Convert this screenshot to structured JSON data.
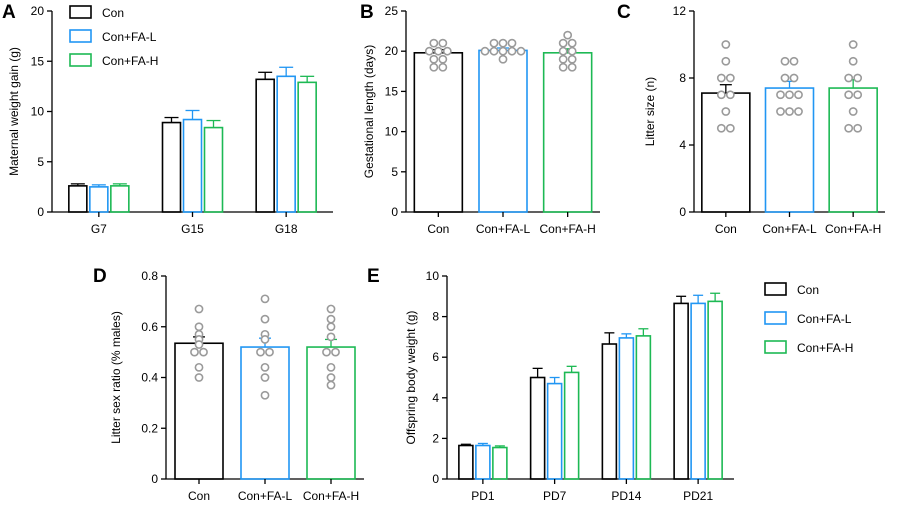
{
  "colors": {
    "con": "#000000",
    "fa_l": "#2196F3",
    "fa_h": "#1DB954",
    "dots": "#9a9a9a"
  },
  "chart_data": [
    {
      "panel": "A",
      "type": "bar",
      "categories": [
        "G7",
        "G15",
        "G18"
      ],
      "series": [
        {
          "name": "Con",
          "values": [
            2.6,
            8.9,
            13.2
          ],
          "errors": [
            0.2,
            0.5,
            0.7
          ]
        },
        {
          "name": "Con+FA-L",
          "values": [
            2.5,
            9.2,
            13.5
          ],
          "errors": [
            0.2,
            0.9,
            0.9
          ]
        },
        {
          "name": "Con+FA-H",
          "values": [
            2.6,
            8.4,
            12.9
          ],
          "errors": [
            0.2,
            0.7,
            0.6
          ]
        }
      ],
      "xlabel": "",
      "ylabel": "Maternal weight gain (g)",
      "ylim": [
        0,
        20
      ],
      "yticks": [
        0,
        5,
        10,
        15,
        20
      ],
      "legend": "top-left"
    },
    {
      "panel": "B",
      "type": "bar",
      "categories": [
        "Con",
        "Con+FA-L",
        "Con+FA-H"
      ],
      "values": [
        19.8,
        20.1,
        19.8
      ],
      "errors": [
        0.4,
        0.3,
        0.5
      ],
      "points": [
        [
          21,
          21,
          20,
          20,
          20,
          19,
          19,
          18,
          18
        ],
        [
          21,
          21,
          21,
          20,
          20,
          20,
          20,
          20,
          19
        ],
        [
          22,
          21,
          21,
          20,
          20,
          19,
          19,
          18,
          18
        ]
      ],
      "ylabel": "Gestational length (days)",
      "ylim": [
        0,
        25
      ],
      "yticks": [
        0,
        5,
        10,
        15,
        20,
        25
      ]
    },
    {
      "panel": "C",
      "type": "bar",
      "categories": [
        "Con",
        "Con+FA-L",
        "Con+FA-H"
      ],
      "values": [
        7.1,
        7.4,
        7.4
      ],
      "errors": [
        0.5,
        0.4,
        0.5
      ],
      "points": [
        [
          10,
          9,
          8,
          8,
          7,
          7,
          6,
          5,
          5
        ],
        [
          9,
          9,
          8,
          8,
          7,
          7,
          7,
          6,
          6,
          6
        ],
        [
          10,
          9,
          8,
          8,
          7,
          7,
          6,
          5,
          5
        ]
      ],
      "ylabel": "Litter size (n)",
      "ylim": [
        0,
        12
      ],
      "yticks": [
        0,
        4,
        8,
        12
      ]
    },
    {
      "panel": "D",
      "type": "bar",
      "categories": [
        "Con",
        "Con+FA-L",
        "Con+FA-H"
      ],
      "values": [
        0.535,
        0.52,
        0.52
      ],
      "errors": [
        0.025,
        0.035,
        0.03
      ],
      "points": [
        [
          0.67,
          0.6,
          0.57,
          0.55,
          0.53,
          0.5,
          0.5,
          0.44,
          0.4
        ],
        [
          0.71,
          0.63,
          0.57,
          0.55,
          0.5,
          0.5,
          0.44,
          0.4,
          0.33
        ],
        [
          0.67,
          0.63,
          0.6,
          0.56,
          0.5,
          0.5,
          0.44,
          0.4,
          0.37
        ]
      ],
      "ylabel": "Litter sex ratio (% males)",
      "ylim": [
        0,
        0.8
      ],
      "yticks": [
        "0",
        "0.2",
        "0.4",
        "0.6",
        "0.8"
      ]
    },
    {
      "panel": "E",
      "type": "bar",
      "categories": [
        "PD1",
        "PD7",
        "PD14",
        "PD21"
      ],
      "series": [
        {
          "name": "Con",
          "values": [
            1.65,
            5.0,
            6.65,
            8.65
          ],
          "errors": [
            0.06,
            0.45,
            0.55,
            0.35
          ]
        },
        {
          "name": "Con+FA-L",
          "values": [
            1.65,
            4.7,
            6.95,
            8.65
          ],
          "errors": [
            0.1,
            0.3,
            0.2,
            0.4
          ]
        },
        {
          "name": "Con+FA-H",
          "values": [
            1.55,
            5.25,
            7.05,
            8.75
          ],
          "errors": [
            0.08,
            0.3,
            0.35,
            0.4
          ]
        }
      ],
      "ylabel": "Offspring body weight (g)",
      "ylim": [
        0,
        10
      ],
      "yticks": [
        0,
        2,
        4,
        6,
        8,
        10
      ],
      "legend": "right"
    }
  ]
}
